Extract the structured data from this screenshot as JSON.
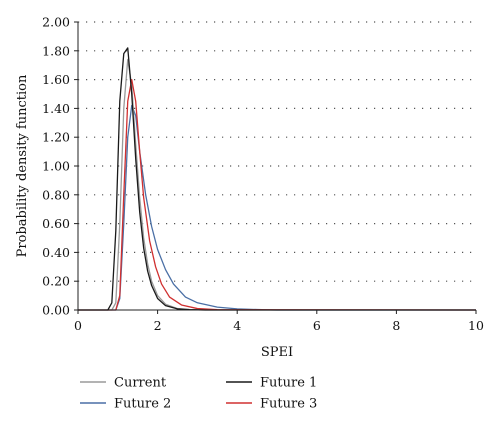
{
  "chart_data": {
    "type": "line",
    "title": "",
    "xlabel": "SPEI",
    "ylabel": "Probability density function",
    "xlim": [
      0,
      10
    ],
    "ylim": [
      0,
      2.0
    ],
    "x_ticks": [
      0,
      2,
      4,
      6,
      8,
      10
    ],
    "y_ticks": [
      0.0,
      0.2,
      0.4,
      0.6,
      0.8,
      1.0,
      1.2,
      1.4,
      1.6,
      1.8,
      2.0
    ],
    "x_tick_labels": [
      "0",
      "2",
      "4",
      "6",
      "8",
      "10"
    ],
    "y_tick_labels": [
      "0.00",
      "0.20",
      "0.40",
      "0.60",
      "0.80",
      "1.00",
      "1.20",
      "1.40",
      "1.60",
      "1.80",
      "2.00"
    ],
    "grid": "horizontal-dotted",
    "legend_position": "bottom",
    "series": [
      {
        "name": "Current",
        "color": "#9a9a9a",
        "x": [
          0,
          0.85,
          0.95,
          1.05,
          1.15,
          1.25,
          1.35,
          1.45,
          1.55,
          1.65,
          1.75,
          1.85,
          2.0,
          2.2,
          2.5,
          2.8,
          3.2,
          10
        ],
        "y": [
          0,
          0,
          0.05,
          0.6,
          1.4,
          1.74,
          1.56,
          1.15,
          0.78,
          0.5,
          0.32,
          0.2,
          0.1,
          0.04,
          0.01,
          0.003,
          0,
          0
        ]
      },
      {
        "name": "Future 1",
        "color": "#1a1a1a",
        "x": [
          0,
          0.75,
          0.85,
          0.95,
          1.05,
          1.15,
          1.25,
          1.35,
          1.45,
          1.55,
          1.65,
          1.75,
          1.85,
          2.0,
          2.2,
          2.5,
          2.8,
          3.2,
          10
        ],
        "y": [
          0,
          0,
          0.05,
          0.55,
          1.45,
          1.78,
          1.82,
          1.5,
          1.05,
          0.68,
          0.43,
          0.27,
          0.17,
          0.08,
          0.03,
          0.008,
          0.002,
          0,
          0
        ]
      },
      {
        "name": "Future 2",
        "color": "#4a6fa5",
        "x": [
          0,
          0.95,
          1.05,
          1.15,
          1.25,
          1.35,
          1.45,
          1.55,
          1.7,
          1.85,
          2.0,
          2.2,
          2.4,
          2.7,
          3.0,
          3.5,
          4.0,
          4.5,
          5.0,
          10
        ],
        "y": [
          0,
          0,
          0.08,
          0.6,
          1.2,
          1.42,
          1.35,
          1.1,
          0.8,
          0.58,
          0.42,
          0.28,
          0.18,
          0.09,
          0.05,
          0.02,
          0.008,
          0.003,
          0,
          0
        ]
      },
      {
        "name": "Future 3",
        "color": "#d03030",
        "x": [
          0,
          0.95,
          1.05,
          1.15,
          1.25,
          1.35,
          1.45,
          1.55,
          1.65,
          1.8,
          1.95,
          2.1,
          2.3,
          2.6,
          3.0,
          3.5,
          10
        ],
        "y": [
          0,
          0,
          0.1,
          0.8,
          1.45,
          1.6,
          1.45,
          1.1,
          0.78,
          0.48,
          0.3,
          0.18,
          0.09,
          0.035,
          0.01,
          0.002,
          0
        ]
      }
    ]
  }
}
